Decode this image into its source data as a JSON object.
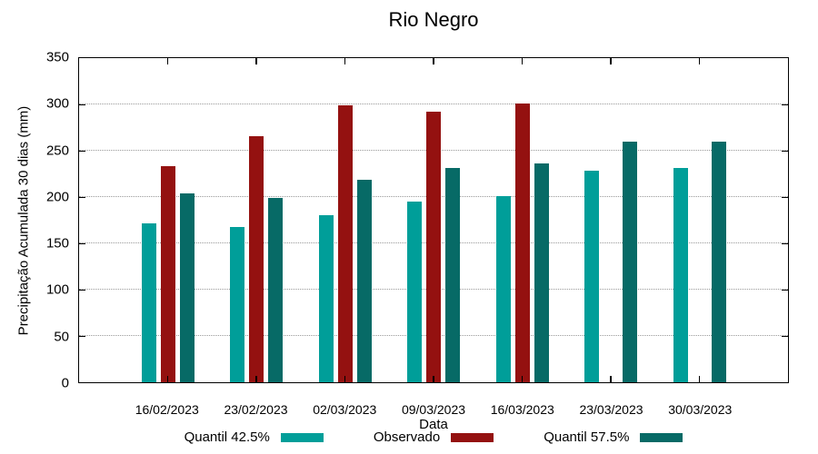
{
  "chart_data": {
    "type": "bar",
    "title": "Rio Negro",
    "xlabel": "Data",
    "ylabel": "Precipitação Acumulada 30 dias (mm)",
    "ylim": [
      0,
      350
    ],
    "yticks": [
      0,
      50,
      100,
      150,
      200,
      250,
      300,
      350
    ],
    "grid": "dotted horizontal gridlines at each y tick",
    "legend_position": "bottom center, label left of swatch",
    "background_color": "#ffffff",
    "axis_color": "#000000",
    "grid_color": "#999999",
    "categories": [
      "16/02/2023",
      "23/02/2023",
      "02/03/2023",
      "09/03/2023",
      "16/03/2023",
      "23/03/2023",
      "30/03/2023"
    ],
    "series": [
      {
        "name": "Quantil 42.5%",
        "color": "#009E99",
        "values": [
          172,
          168,
          180,
          195,
          201,
          228,
          231
        ]
      },
      {
        "name": "Observado",
        "color": "#941110",
        "values": [
          233,
          266,
          299,
          292,
          301,
          null,
          null
        ]
      },
      {
        "name": "Quantil 57.5%",
        "color": "#076A66",
        "values": [
          204,
          199,
          219,
          231,
          236,
          260,
          260
        ]
      }
    ]
  }
}
